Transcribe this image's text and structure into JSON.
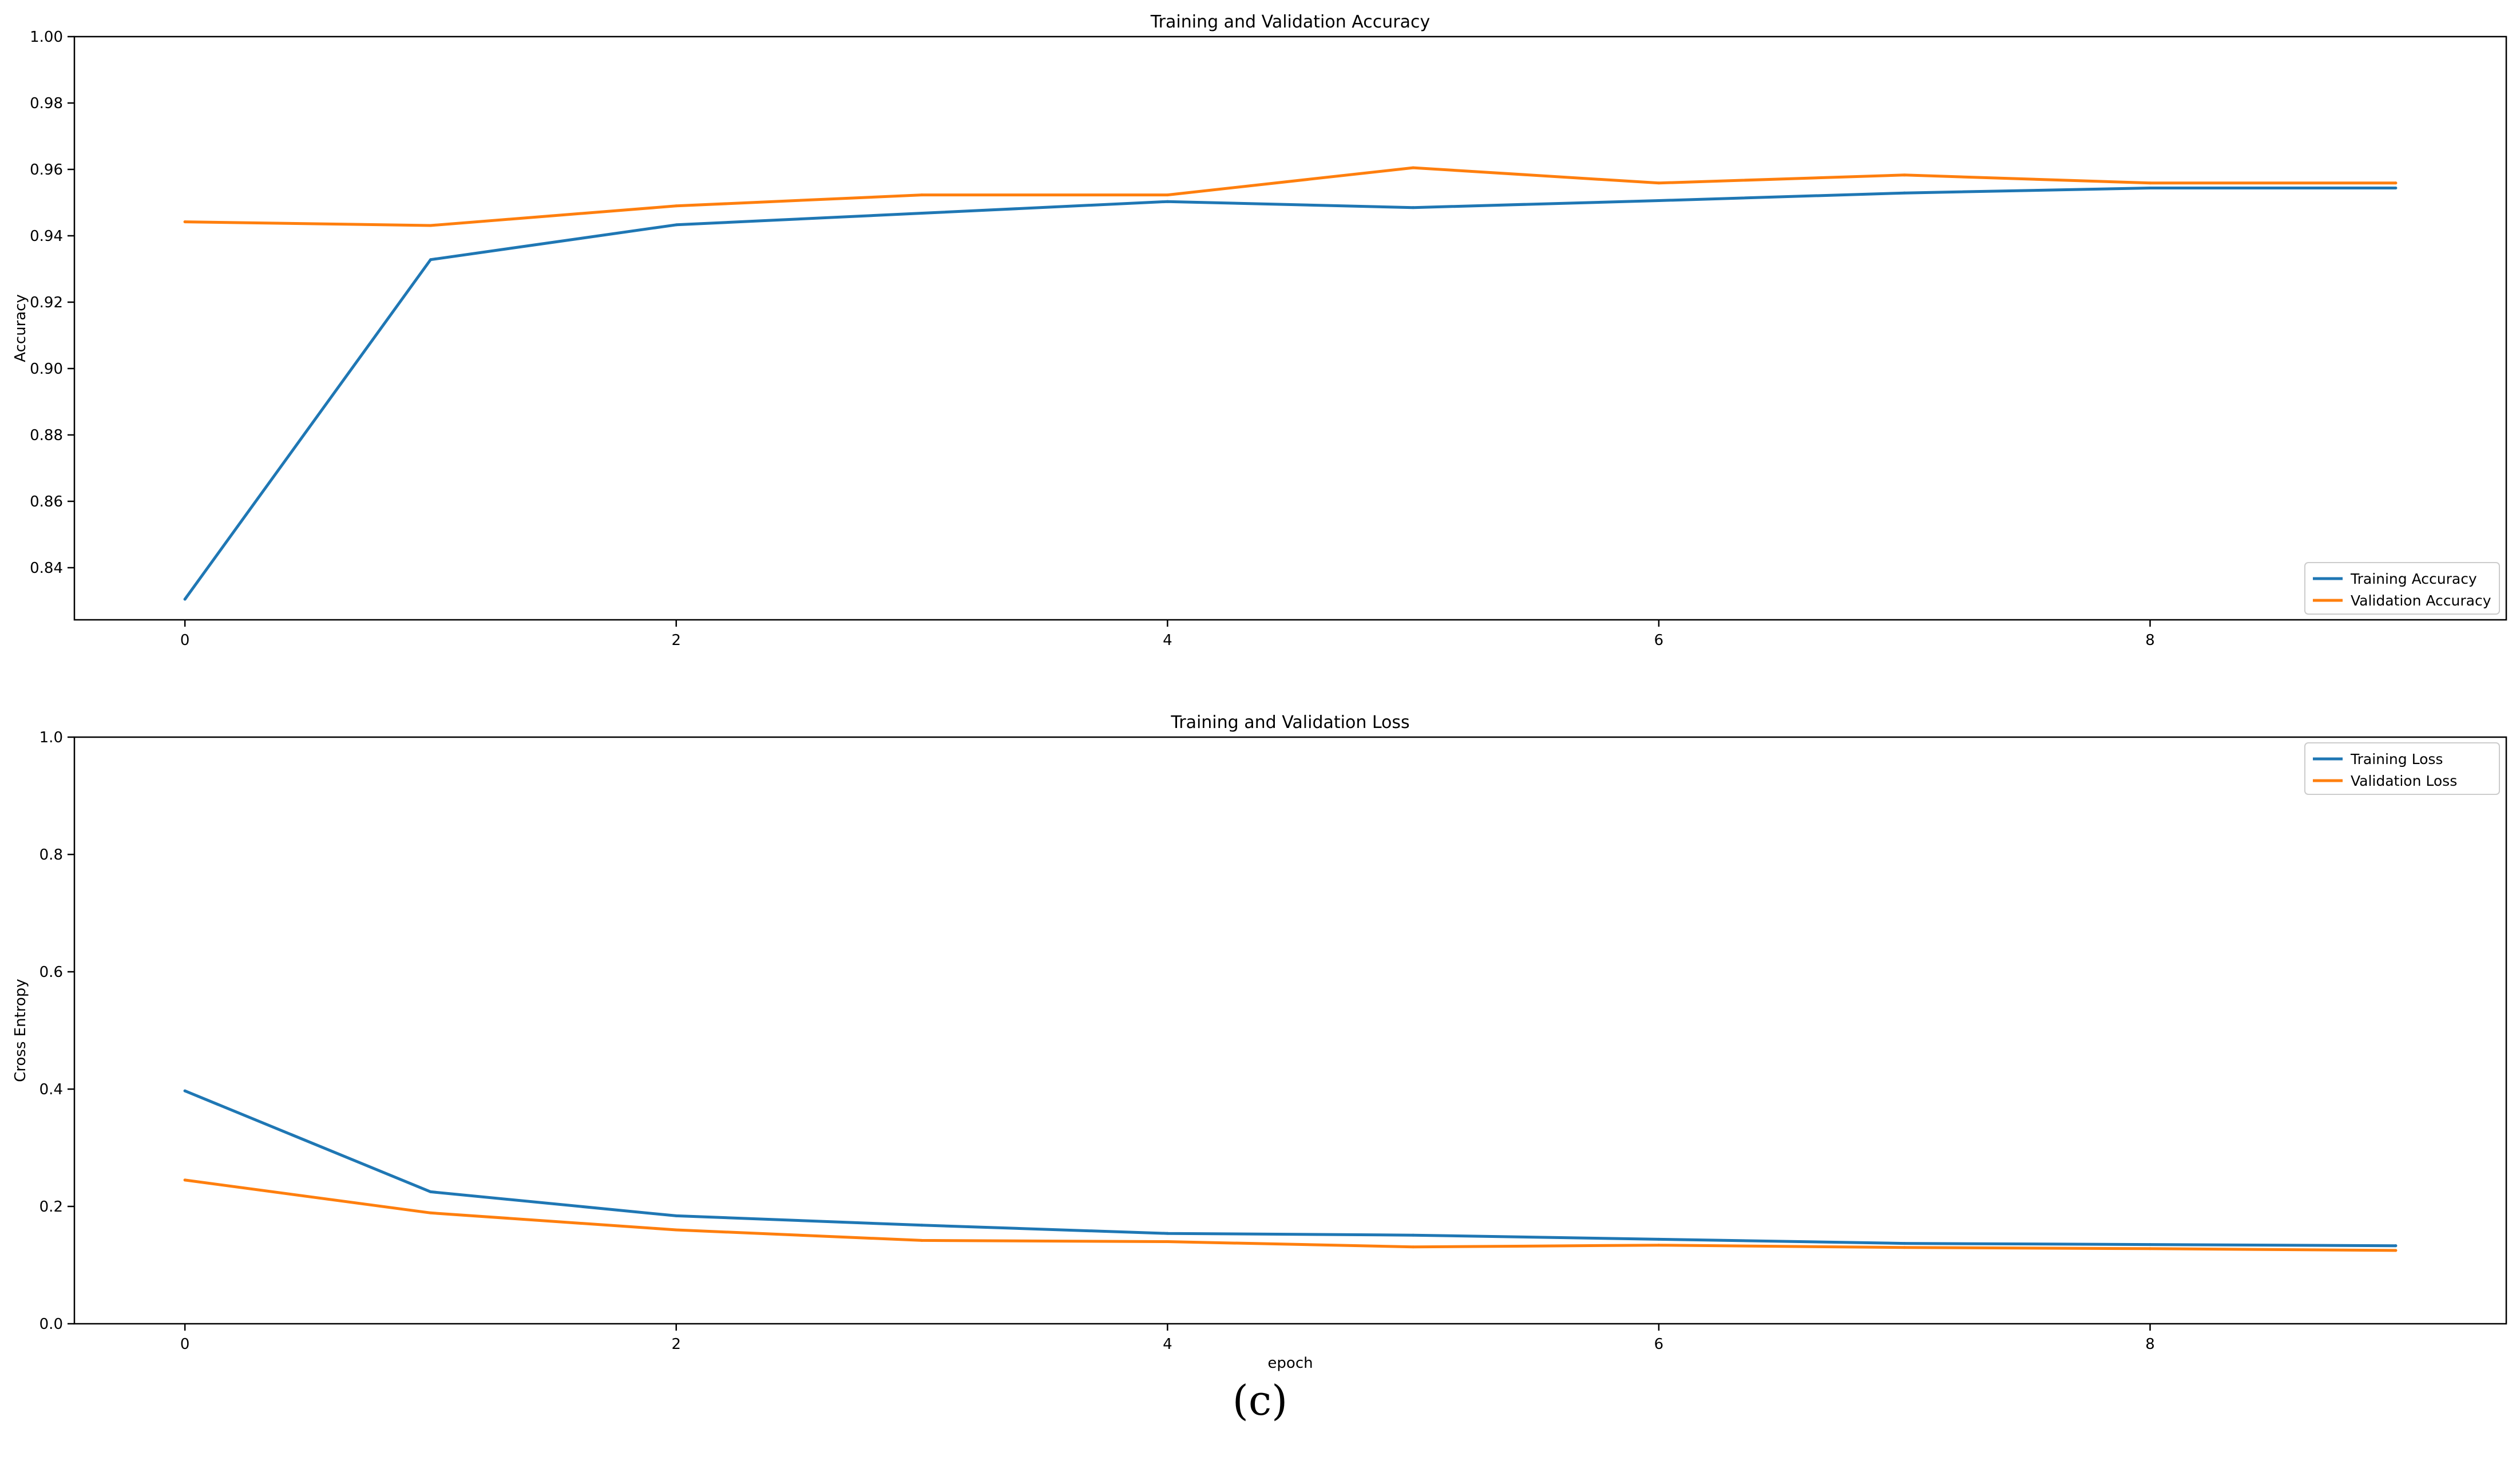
{
  "caption": "(c)",
  "colors": {
    "training": "#1f77b4",
    "validation": "#ff7f0e",
    "axis": "#000000"
  },
  "chart_data": [
    {
      "type": "line",
      "title": "Training and Validation Accuracy",
      "xlabel": "",
      "ylabel": "Accuracy",
      "x": [
        0,
        1,
        2,
        3,
        4,
        5,
        6,
        7,
        8,
        9
      ],
      "xlim": [
        -0.45,
        9.45
      ],
      "ylim": [
        0.8243,
        1.0
      ],
      "xticks": [
        0,
        2,
        4,
        6,
        8
      ],
      "yticks": [
        0.84,
        0.86,
        0.88,
        0.9,
        0.92,
        0.94,
        0.96,
        0.98,
        1.0
      ],
      "ytick_labels": [
        "0.84",
        "0.86",
        "0.88",
        "0.90",
        "0.92",
        "0.94",
        "0.96",
        "0.98",
        "1.00"
      ],
      "legend_position": "lower-right",
      "grid": false,
      "series": [
        {
          "name": "Training Accuracy",
          "color": "#1f77b4",
          "values": [
            0.8305,
            0.9328,
            0.9433,
            0.9468,
            0.9503,
            0.9485,
            0.9506,
            0.9529,
            0.9544,
            0.9544
          ]
        },
        {
          "name": "Validation Accuracy",
          "color": "#ff7f0e",
          "values": [
            0.9442,
            0.9431,
            0.949,
            0.9523,
            0.9523,
            0.9605,
            0.9559,
            0.9583,
            0.9559,
            0.9559
          ]
        }
      ]
    },
    {
      "type": "line",
      "title": "Training and Validation Loss",
      "xlabel": "epoch",
      "ylabel": "Cross Entropy",
      "x": [
        0,
        1,
        2,
        3,
        4,
        5,
        6,
        7,
        8,
        9
      ],
      "xlim": [
        -0.45,
        9.45
      ],
      "ylim": [
        0.0,
        1.0
      ],
      "xticks": [
        0,
        2,
        4,
        6,
        8
      ],
      "yticks": [
        0.0,
        0.2,
        0.4,
        0.6,
        0.8,
        1.0
      ],
      "ytick_labels": [
        "0.0",
        "0.2",
        "0.4",
        "0.6",
        "0.8",
        "1.0"
      ],
      "legend_position": "upper-right",
      "grid": false,
      "series": [
        {
          "name": "Training Loss",
          "color": "#1f77b4",
          "values": [
            0.397,
            0.225,
            0.184,
            0.168,
            0.154,
            0.151,
            0.144,
            0.137,
            0.135,
            0.133
          ]
        },
        {
          "name": "Validation Loss",
          "color": "#ff7f0e",
          "values": [
            0.245,
            0.189,
            0.16,
            0.142,
            0.14,
            0.131,
            0.134,
            0.13,
            0.128,
            0.125
          ]
        }
      ]
    }
  ]
}
